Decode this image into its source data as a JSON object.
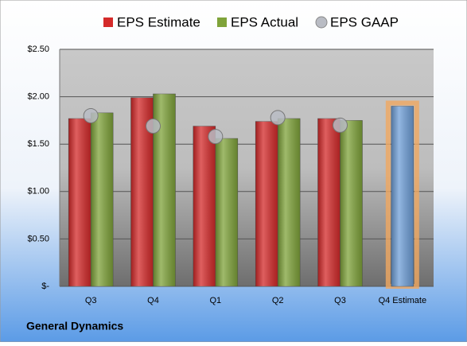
{
  "chart_data": {
    "type": "bar",
    "title": "General Dynamics",
    "categories": [
      "Q3",
      "Q4",
      "Q1",
      "Q2",
      "Q3",
      "Q4 Estimate"
    ],
    "series": [
      {
        "name": "EPS Estimate",
        "color": "#d42a2a",
        "colors": [
          "#d42a2a",
          "#d42a2a",
          "#d42a2a",
          "#d42a2a",
          "#d42a2a",
          "#6f9fd8"
        ],
        "values": [
          1.77,
          1.99,
          1.69,
          1.74,
          1.77,
          1.9
        ]
      },
      {
        "name": "EPS Actual",
        "color": "#7fa33a",
        "values": [
          1.83,
          2.03,
          1.56,
          1.77,
          1.75,
          null
        ]
      },
      {
        "name": "EPS GAAP",
        "color": "#b9bcc4",
        "type": "scatter",
        "values": [
          1.8,
          1.69,
          1.58,
          1.78,
          1.7,
          null
        ]
      }
    ],
    "ylim": [
      0,
      2.5
    ],
    "yticks": [
      {
        "value": 0,
        "label": "$-"
      },
      {
        "value": 0.5,
        "label": "$0.50"
      },
      {
        "value": 1,
        "label": "$1.00"
      },
      {
        "value": 1.5,
        "label": "$1.50"
      },
      {
        "value": 2,
        "label": "$2.00"
      },
      {
        "value": 2.5,
        "label": "$2.50"
      }
    ],
    "grid": true,
    "legend": "top"
  }
}
